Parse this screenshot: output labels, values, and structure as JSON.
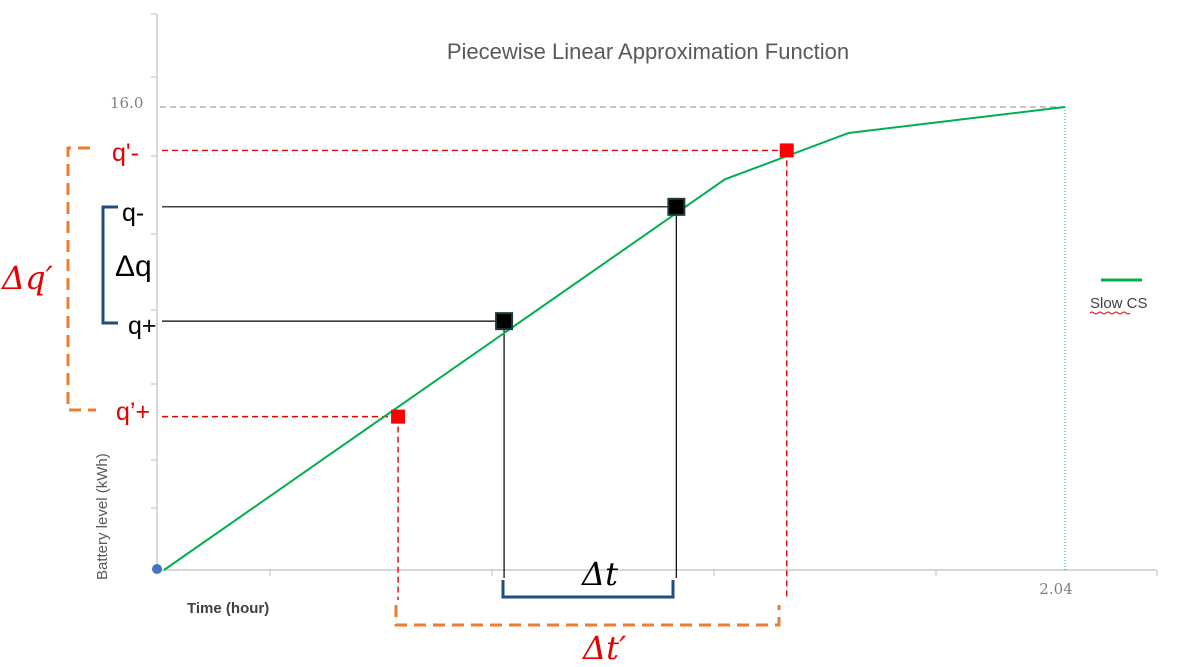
{
  "chart_data": {
    "type": "line",
    "title": "Piecewise Linear Approximation Function",
    "xlabel": "Time (hour)",
    "ylabel": "Battery level (kWh)",
    "xlim": [
      0,
      2.04
    ],
    "ylim": [
      0,
      16.0
    ],
    "tick_labels": {
      "x_max": "2.04",
      "y_max": "16.0"
    },
    "series": [
      {
        "name": "Slow CS",
        "color": "#00b050",
        "x": [
          0,
          1.27,
          1.55,
          2.04
        ],
        "y": [
          0,
          13.5,
          15.1,
          16.0
        ]
      }
    ],
    "highlight_points": [
      {
        "x": 0.77,
        "y": 8.6,
        "color": "#000000",
        "label": "q+"
      },
      {
        "x": 1.16,
        "y": 12.55,
        "color": "#000000",
        "label": "q-"
      },
      {
        "x": 0.53,
        "y": 5.3,
        "color": "#ff0000",
        "label": "q'+"
      },
      {
        "x": 1.41,
        "y": 14.5,
        "color": "#ff0000",
        "label": "q'-"
      }
    ],
    "annotations": {
      "delta_q": "Δq",
      "delta_q_prime": "Δq′",
      "delta_t": "Δt",
      "delta_t_prime": "Δt′",
      "q_minus": "q-",
      "q_plus": "q+",
      "q_prime_minus": "q'-",
      "q_prime_plus": "q’+"
    },
    "grid": false,
    "legend": "right"
  },
  "colors": {
    "series": "#00b050",
    "red": "#e60000",
    "orange": "#ed7d31",
    "teal": "#1f4e79",
    "axis": "#bfbfbf"
  }
}
